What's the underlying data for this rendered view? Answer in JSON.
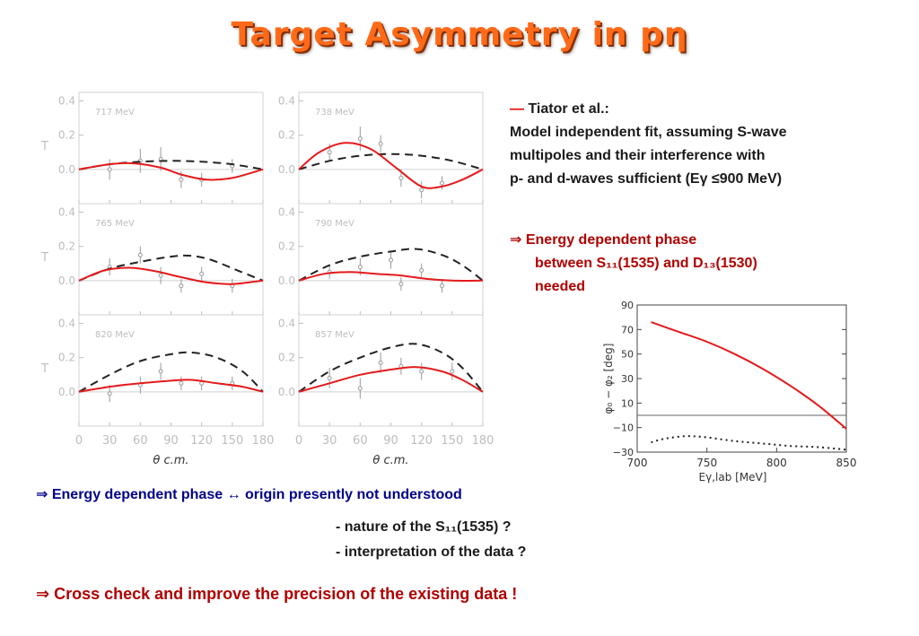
{
  "title": "Target Asymmetry in pη",
  "colors": {
    "title": "#ff6a18",
    "model": "#e41a1c",
    "fit": "#222222",
    "accent_red": "#b00000",
    "accent_blue": "#00008b"
  },
  "text": {
    "tiator_dash": "—",
    "tiator_name": " Tiator et al.:",
    "line1": "Model independent fit, assuming S-wave",
    "line2": "multipoles and their interference with",
    "line3": "p- and d-waves sufficient (Eγ ≤900 MeV)",
    "arrow1": "⇒ Energy dependent phase",
    "arrow1b": "between S₁₁(1535) and D₁₃(1530)",
    "arrow1c": "needed",
    "arrow2_a": "⇒ Energy dependent phase ↔",
    "arrow2_b": "origin presently not understood",
    "bullet1": "- nature of the S₁₁(1535) ?",
    "bullet2": "- interpretation of the data ?",
    "arrow3": "⇒ Cross check and improve the precision of the existing data !"
  },
  "chart_data": [
    {
      "type": "scatter",
      "ylabel": "T",
      "xlabel": "θ c.m.",
      "xlim": [
        0,
        180
      ],
      "ylim": [
        -0.2,
        0.45
      ],
      "xticks": [
        0,
        30,
        60,
        90,
        120,
        150,
        180
      ],
      "yticks": [
        0.0,
        0.2,
        0.4
      ],
      "panels": [
        {
          "label": "717 MeV",
          "points": [
            [
              30,
              0.0,
              0.06
            ],
            [
              60,
              0.05,
              0.07
            ],
            [
              80,
              0.06,
              0.07
            ],
            [
              100,
              -0.06,
              0.05
            ],
            [
              120,
              -0.06,
              0.04
            ],
            [
              150,
              0.02,
              0.04
            ]
          ],
          "red": [
            [
              0,
              0.0
            ],
            [
              30,
              0.03
            ],
            [
              55,
              0.035
            ],
            [
              80,
              0.01
            ],
            [
              100,
              -0.03
            ],
            [
              125,
              -0.06
            ],
            [
              150,
              -0.05
            ],
            [
              180,
              0.0
            ]
          ],
          "dash": [
            [
              0,
              0.0
            ],
            [
              30,
              0.03
            ],
            [
              60,
              0.045
            ],
            [
              90,
              0.05
            ],
            [
              120,
              0.045
            ],
            [
              150,
              0.03
            ],
            [
              180,
              0.0
            ]
          ]
        },
        {
          "label": "738 MeV",
          "points": [
            [
              30,
              0.1,
              0.05
            ],
            [
              60,
              0.18,
              0.07
            ],
            [
              80,
              0.15,
              0.05
            ],
            [
              100,
              -0.05,
              0.05
            ],
            [
              120,
              -0.12,
              0.05
            ],
            [
              140,
              -0.08,
              0.04
            ]
          ],
          "red": [
            [
              0,
              0.0
            ],
            [
              20,
              0.1
            ],
            [
              45,
              0.155
            ],
            [
              70,
              0.12
            ],
            [
              95,
              0.01
            ],
            [
              120,
              -0.1
            ],
            [
              140,
              -0.1
            ],
            [
              160,
              -0.06
            ],
            [
              180,
              0.0
            ]
          ],
          "dash": [
            [
              0,
              0.0
            ],
            [
              30,
              0.05
            ],
            [
              60,
              0.08
            ],
            [
              90,
              0.09
            ],
            [
              120,
              0.08
            ],
            [
              150,
              0.05
            ],
            [
              180,
              0.0
            ]
          ]
        },
        {
          "label": "765 MeV",
          "points": [
            [
              30,
              0.08,
              0.05
            ],
            [
              60,
              0.15,
              0.05
            ],
            [
              80,
              0.03,
              0.05
            ],
            [
              100,
              -0.03,
              0.04
            ],
            [
              120,
              0.04,
              0.04
            ],
            [
              150,
              -0.03,
              0.04
            ]
          ],
          "red": [
            [
              0,
              0.0
            ],
            [
              25,
              0.06
            ],
            [
              50,
              0.075
            ],
            [
              75,
              0.055
            ],
            [
              100,
              0.02
            ],
            [
              125,
              -0.01
            ],
            [
              150,
              -0.02
            ],
            [
              180,
              0.0
            ]
          ],
          "dash": [
            [
              0,
              0.0
            ],
            [
              30,
              0.07
            ],
            [
              60,
              0.11
            ],
            [
              90,
              0.14
            ],
            [
              110,
              0.145
            ],
            [
              130,
              0.12
            ],
            [
              155,
              0.06
            ],
            [
              180,
              0.0
            ]
          ]
        },
        {
          "label": "790 MeV",
          "points": [
            [
              30,
              0.05,
              0.04
            ],
            [
              60,
              0.08,
              0.05
            ],
            [
              90,
              0.12,
              0.05
            ],
            [
              100,
              -0.02,
              0.04
            ],
            [
              120,
              0.06,
              0.04
            ],
            [
              140,
              -0.03,
              0.04
            ]
          ],
          "red": [
            [
              0,
              0.0
            ],
            [
              25,
              0.04
            ],
            [
              50,
              0.05
            ],
            [
              75,
              0.04
            ],
            [
              100,
              0.03
            ],
            [
              125,
              0.01
            ],
            [
              150,
              0.0
            ],
            [
              180,
              0.0
            ]
          ],
          "dash": [
            [
              0,
              0.0
            ],
            [
              30,
              0.09
            ],
            [
              60,
              0.14
            ],
            [
              90,
              0.17
            ],
            [
              115,
              0.185
            ],
            [
              140,
              0.15
            ],
            [
              160,
              0.09
            ],
            [
              180,
              0.0
            ]
          ]
        },
        {
          "label": "820 MeV",
          "points": [
            [
              30,
              -0.01,
              0.05
            ],
            [
              60,
              0.04,
              0.05
            ],
            [
              80,
              0.12,
              0.05
            ],
            [
              100,
              0.05,
              0.04
            ],
            [
              120,
              0.05,
              0.04
            ],
            [
              150,
              0.05,
              0.04
            ]
          ],
          "red": [
            [
              0,
              0.0
            ],
            [
              30,
              0.03
            ],
            [
              60,
              0.05
            ],
            [
              90,
              0.065
            ],
            [
              110,
              0.07
            ],
            [
              135,
              0.05
            ],
            [
              160,
              0.03
            ],
            [
              180,
              0.0
            ]
          ],
          "dash": [
            [
              0,
              0.0
            ],
            [
              30,
              0.1
            ],
            [
              60,
              0.18
            ],
            [
              90,
              0.22
            ],
            [
              110,
              0.23
            ],
            [
              135,
              0.2
            ],
            [
              160,
              0.12
            ],
            [
              180,
              0.0
            ]
          ]
        },
        {
          "label": "857 MeV",
          "points": [
            [
              30,
              0.08,
              0.06
            ],
            [
              60,
              0.02,
              0.06
            ],
            [
              80,
              0.17,
              0.06
            ],
            [
              100,
              0.15,
              0.05
            ],
            [
              120,
              0.12,
              0.05
            ],
            [
              150,
              0.12,
              0.05
            ]
          ],
          "red": [
            [
              0,
              0.0
            ],
            [
              30,
              0.05
            ],
            [
              60,
              0.1
            ],
            [
              90,
              0.13
            ],
            [
              115,
              0.145
            ],
            [
              140,
              0.12
            ],
            [
              160,
              0.07
            ],
            [
              180,
              0.0
            ]
          ],
          "dash": [
            [
              0,
              0.0
            ],
            [
              30,
              0.12
            ],
            [
              60,
              0.2
            ],
            [
              90,
              0.26
            ],
            [
              115,
              0.28
            ],
            [
              140,
              0.23
            ],
            [
              160,
              0.14
            ],
            [
              180,
              0.0
            ]
          ]
        }
      ]
    },
    {
      "type": "line",
      "xlabel": "Eγ,lab [MeV]",
      "ylabel": "φ₀ − φ₂ [deg]",
      "xlim": [
        700,
        850
      ],
      "ylim": [
        -30,
        90
      ],
      "xticks": [
        700,
        750,
        800,
        850
      ],
      "yticks": [
        -30,
        -10,
        10,
        30,
        50,
        70,
        90
      ],
      "reference_y": 0,
      "series": [
        {
          "style": "solid-red",
          "points": [
            [
              710,
              76
            ],
            [
              730,
              68
            ],
            [
              750,
              60
            ],
            [
              770,
              50
            ],
            [
              790,
              38
            ],
            [
              810,
              24
            ],
            [
              830,
              8
            ],
            [
              850,
              -11
            ]
          ]
        },
        {
          "style": "dotted",
          "points": [
            [
              710,
              -22
            ],
            [
              720,
              -19
            ],
            [
              735,
              -17
            ],
            [
              750,
              -18
            ],
            [
              770,
              -21
            ],
            [
              790,
              -23
            ],
            [
              810,
              -25
            ],
            [
              830,
              -26
            ],
            [
              850,
              -28
            ]
          ]
        }
      ]
    }
  ]
}
